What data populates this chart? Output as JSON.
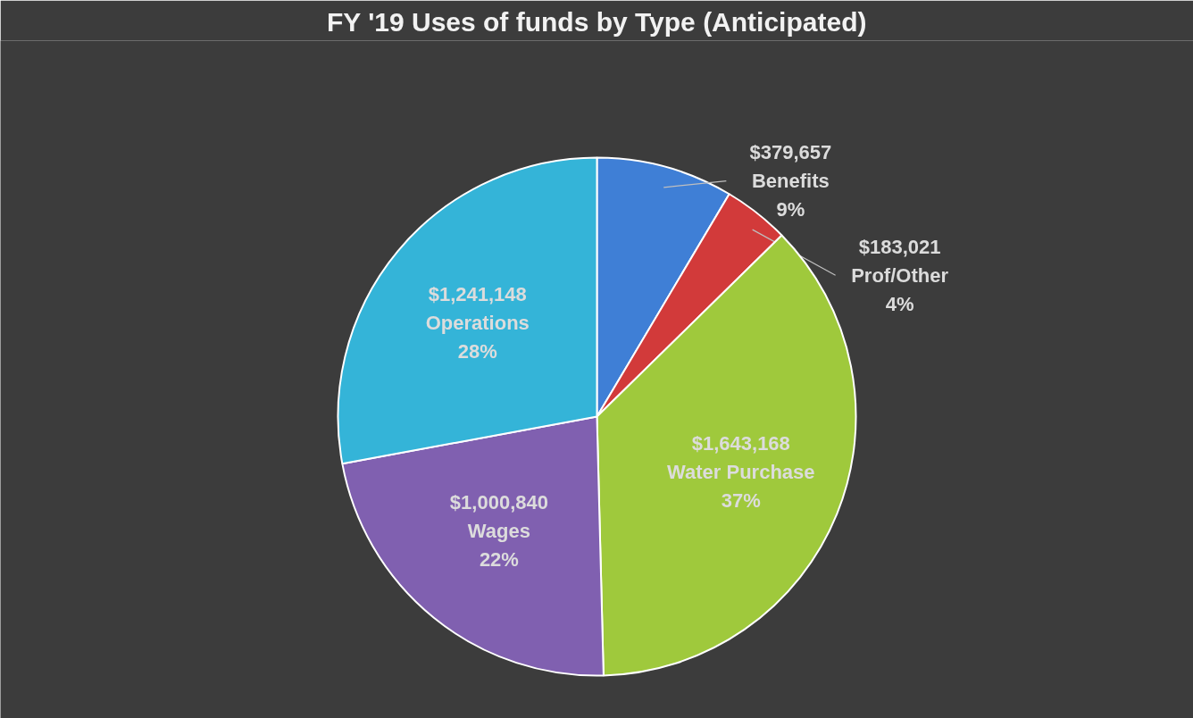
{
  "chart_data": {
    "type": "pie",
    "title": "FY '19 Uses of funds by Type (Anticipated)",
    "categories": [
      "Benefits",
      "Prof/Other",
      "Water Purchase",
      "Wages",
      "Operations"
    ],
    "values": [
      379657,
      183021,
      1643168,
      1000840,
      1241148
    ],
    "colors": [
      "#3f7fd6",
      "#d23a3a",
      "#9fc93c",
      "#8060b0",
      "#34b4d8"
    ],
    "value_labels": [
      "$379,657",
      "$183,021",
      "$1,643,168",
      "$1,000,840",
      "$1,241,148"
    ],
    "annotations": [
      {
        "text": "9%",
        "x": "Benefits"
      },
      {
        "text": "4%",
        "x": "Prof/Other"
      },
      {
        "text": "37%",
        "x": "Water Purchase"
      },
      {
        "text": "22%",
        "x": "Wages"
      },
      {
        "text": "28%",
        "x": "Operations"
      }
    ],
    "legend": false
  }
}
